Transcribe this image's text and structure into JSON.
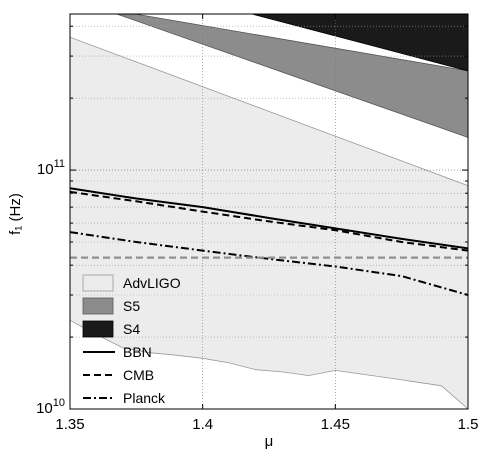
{
  "chart_data": {
    "type": "area",
    "xlabel": "μ",
    "ylabel": "f₁ (Hz)",
    "xlim": [
      1.35,
      1.5
    ],
    "ylim": [
      10000000000.0,
      450000000000.0
    ],
    "yscale": "log",
    "grid": true,
    "legend_position": "bottom-left",
    "x_ticks": [
      {
        "value": 1.35,
        "label": "1.35"
      },
      {
        "value": 1.4,
        "label": "1.4"
      },
      {
        "value": 1.45,
        "label": "1.45"
      },
      {
        "value": 1.5,
        "label": "1.5"
      }
    ],
    "y_ticks": [
      {
        "value": 10000000000.0,
        "base": "10",
        "exp": "10"
      },
      {
        "value": 100000000000.0,
        "base": "10",
        "exp": "11"
      }
    ],
    "regions": [
      {
        "name": "AdvLIGO",
        "fill": "#ececec",
        "stroke": "#9a9a9a",
        "upper": {
          "x": [
            1.35,
            1.5
          ],
          "y": [
            360000000000.0,
            86000000000.0
          ]
        },
        "lower": {
          "x": [
            1.35,
            1.36,
            1.37,
            1.38,
            1.39,
            1.4,
            1.41,
            1.42,
            1.43,
            1.44,
            1.45,
            1.46,
            1.47,
            1.48,
            1.49,
            1.5
          ],
          "y": [
            23500000000.0,
            20500000000.0,
            18000000000.0,
            17200000000.0,
            16800000000.0,
            16300000000.0,
            15600000000.0,
            14600000000.0,
            14300000000.0,
            13800000000.0,
            14500000000.0,
            14000000000.0,
            13500000000.0,
            13000000000.0,
            12500000000.0,
            10000000000.0
          ]
        }
      },
      {
        "name": "S5",
        "fill": "#8c8c8c",
        "stroke": "#555555",
        "upper": {
          "x": [
            1.3745,
            1.5
          ],
          "y": [
            450000000000.0,
            260000000000.0
          ]
        },
        "lower": {
          "x": [
            1.3676,
            1.5
          ],
          "y": [
            450000000000.0,
            137000000000.0
          ]
        }
      },
      {
        "name": "S4",
        "fill": "#1a1a1a",
        "stroke": "#000000",
        "upper": {
          "x": [
            1.4186,
            1.5
          ],
          "y": [
            450000000000.0,
            450000000000.0
          ]
        },
        "lower": {
          "x": [
            1.4186,
            1.5
          ],
          "y": [
            450000000000.0,
            260000000000.0
          ]
        }
      }
    ],
    "series": [
      {
        "name": "BBN",
        "style": "solid",
        "x": [
          1.35,
          1.375,
          1.4,
          1.425,
          1.45,
          1.475,
          1.5
        ],
        "y": [
          84000000000.0,
          76000000000.0,
          70000000000.0,
          63000000000.0,
          57000000000.0,
          51500000000.0,
          47000000000.0
        ]
      },
      {
        "name": "CMB",
        "style": "dashed",
        "x": [
          1.35,
          1.375,
          1.4,
          1.425,
          1.45,
          1.475,
          1.5
        ],
        "y": [
          81000000000.0,
          74000000000.0,
          67000000000.0,
          61000000000.0,
          56000000000.0,
          50000000000.0,
          46000000000.0
        ]
      },
      {
        "name": "Planck",
        "style": "dashdot",
        "x": [
          1.35,
          1.375,
          1.4,
          1.425,
          1.45,
          1.475,
          1.5
        ],
        "y": [
          55000000000.0,
          50000000000.0,
          46000000000.0,
          42500000000.0,
          39500000000.0,
          36000000000.0,
          30000000000.0
        ]
      },
      {
        "name": "",
        "style": "dashed-gray",
        "x": [
          1.35,
          1.5
        ],
        "y": [
          43000000000.0,
          43000000000.0
        ]
      }
    ]
  }
}
